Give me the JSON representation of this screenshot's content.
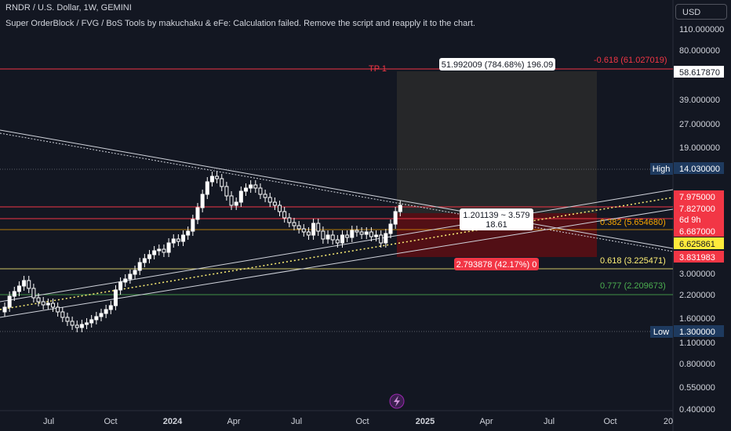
{
  "header": {
    "symbol_line": "RNDR / U.S. Dollar, 1W, GEMINI",
    "indicator_line": "Super OrderBlock / FVG / BoS Tools by makuchaku & eFe: Calculation failed. Remove the script and reapply it to the chart."
  },
  "currency_button": "USD",
  "price_axis": [
    "110.000000",
    "80.000000",
    "58.617870",
    "39.000000",
    "27.000000",
    "19.000000",
    "14.030000",
    "7.975000",
    "7.827000",
    "6d 9h",
    "6.687000",
    "6.625861",
    "3.831983",
    "3.000000",
    "2.200000",
    "1.600000",
    "1.300000",
    "1.100000",
    "0.800000",
    "0.550000",
    "0.400000"
  ],
  "time_axis": [
    "Jul",
    "Oct",
    "2024",
    "Apr",
    "Jul",
    "Oct",
    "2025",
    "Apr",
    "Jul",
    "Oct",
    "20"
  ],
  "markers": {
    "high_label": "High",
    "high_value": "14.030000",
    "low_label": "Low",
    "low_value": "1.300000",
    "target_value": "58.617870",
    "red_level_1": "7.975000",
    "red_level_2": "7.827000",
    "countdown": "6d 9h",
    "red_level_3": "6.687000",
    "current_price": "6.625861",
    "stop_value": "3.831983"
  },
  "fib": {
    "f0618_top": "-0.618 (61.027019)",
    "f0382": "0.382 (5.654680)",
    "f0618": "0.618 (3.225471)",
    "f0777": "0.777 (2.209673)"
  },
  "tp_label": "TP 1",
  "position_tool": {
    "target_box": "51.992009 (784.68%) 196.09",
    "ratio_line1": "1.201139 ~ 3.579",
    "ratio_line2": "18.61",
    "stop_box": "2.793878 (42.17%) 0"
  },
  "colors": {
    "background": "#131722",
    "up": "#ffffff",
    "down": "#ffffff",
    "red": "#f23645",
    "fib_orange": "#f7a600",
    "fib_yellow": "#fff176",
    "fib_green": "#4caf50",
    "high_low_badge": "#1e3a5f"
  },
  "icons": {
    "bolt": "lightning-icon"
  }
}
